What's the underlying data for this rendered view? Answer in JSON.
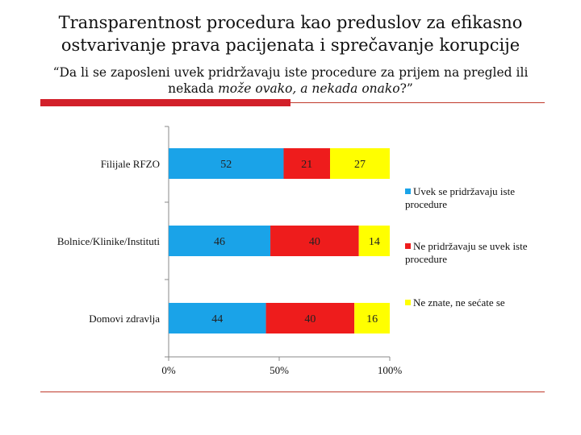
{
  "slide": {
    "title_line1": "Transparentnost procedura kao preduslov za efikasno",
    "title_line2": "ostvarivanje prava pacijenata i sprečavanje korupcije",
    "question_line1": "“Da li se zaposleni uvek pridržavaju iste procedure za prijem na pregled ili",
    "question_line2_plain": "nekada ",
    "question_line2_italic": "može ovako, a nekada onako",
    "question_line2_end": "?”"
  },
  "chart_data": {
    "type": "bar",
    "orientation": "horizontal",
    "stacking": "percent",
    "categories": [
      "Filijale RFZO",
      "Bolnice/Klinike/Instituti",
      "Domovi zdravlja"
    ],
    "series": [
      {
        "name": "Uvek se pridržavaju iste procedure",
        "color": "#1aa3e8",
        "values": [
          52,
          46,
          44
        ]
      },
      {
        "name": "Ne pridržavaju se uvek iste procedure",
        "color": "#ee1c1c",
        "values": [
          21,
          40,
          40
        ]
      },
      {
        "name": "Ne znate, ne sećate se",
        "color": "#ffff00",
        "values": [
          27,
          14,
          16
        ]
      }
    ],
    "x_ticks": [
      "0%",
      "50%",
      "100%"
    ],
    "xlim": [
      0,
      100
    ],
    "grid": false,
    "legend_position": "right"
  }
}
